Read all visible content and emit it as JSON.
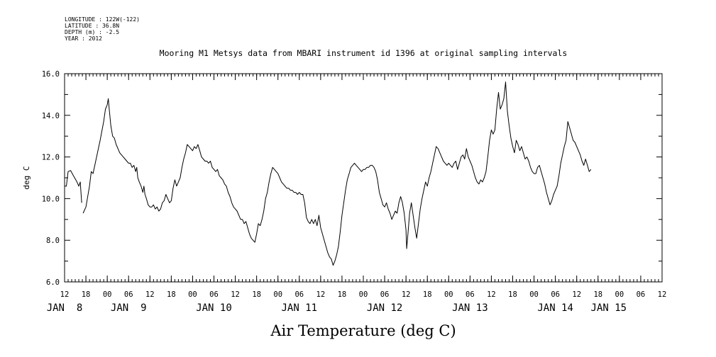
{
  "metadata": [
    "LONGITUDE : 122W(-122)",
    "LATITUDE : 36.8N",
    "DEPTH (m) : -2.5",
    "YEAR : 2012"
  ],
  "chart_data": {
    "type": "line",
    "title": "Mooring M1 Metsys data from MBARI instrument id 1396 at original sampling intervals",
    "xlabel": "Air Temperature (deg C)",
    "ylabel": "deg C",
    "ylim": [
      6.0,
      16.0
    ],
    "y_ticks": [
      "6.0",
      "8.0",
      "10.0",
      "12.0",
      "14.0",
      "16.0"
    ],
    "x_unit": "hours since Jan 7 00:00, 2012",
    "xlim": [
      12,
      180
    ],
    "hour_ticks": [
      {
        "x": 12,
        "label": "12"
      },
      {
        "x": 18,
        "label": "18"
      },
      {
        "x": 24,
        "label": "00"
      },
      {
        "x": 30,
        "label": "06"
      },
      {
        "x": 36,
        "label": "12"
      },
      {
        "x": 42,
        "label": "18"
      },
      {
        "x": 48,
        "label": "00"
      },
      {
        "x": 54,
        "label": "06"
      },
      {
        "x": 60,
        "label": "12"
      },
      {
        "x": 66,
        "label": "18"
      },
      {
        "x": 72,
        "label": "00"
      },
      {
        "x": 78,
        "label": "06"
      },
      {
        "x": 84,
        "label": "12"
      },
      {
        "x": 90,
        "label": "18"
      },
      {
        "x": 96,
        "label": "00"
      },
      {
        "x": 102,
        "label": "06"
      },
      {
        "x": 108,
        "label": "12"
      },
      {
        "x": 114,
        "label": "18"
      },
      {
        "x": 120,
        "label": "00"
      },
      {
        "x": 126,
        "label": "06"
      },
      {
        "x": 132,
        "label": "12"
      },
      {
        "x": 138,
        "label": "18"
      },
      {
        "x": 144,
        "label": "00"
      },
      {
        "x": 150,
        "label": "06"
      },
      {
        "x": 156,
        "label": "12"
      },
      {
        "x": 162,
        "label": "18"
      },
      {
        "x": 168,
        "label": "00"
      },
      {
        "x": 174,
        "label": "06"
      },
      {
        "x": 180,
        "label": "12"
      }
    ],
    "day_labels": [
      {
        "x": 12,
        "label": "JAN  8"
      },
      {
        "x": 30,
        "label": "JAN  9"
      },
      {
        "x": 54,
        "label": "JAN 10"
      },
      {
        "x": 78,
        "label": "JAN 11"
      },
      {
        "x": 102,
        "label": "JAN 12"
      },
      {
        "x": 126,
        "label": "JAN 13"
      },
      {
        "x": 150,
        "label": "JAN 14"
      },
      {
        "x": 165,
        "label": "JAN 15"
      }
    ],
    "segments": [
      [
        [
          12.0,
          10.6
        ],
        [
          12.5,
          10.6
        ],
        [
          13.0,
          11.3
        ],
        [
          13.7,
          11.35
        ],
        [
          14.5,
          11.1
        ],
        [
          15.5,
          10.8
        ],
        [
          16.0,
          10.6
        ],
        [
          16.4,
          10.8
        ],
        [
          16.8,
          9.8
        ]
      ],
      [
        [
          17.2,
          9.3
        ],
        [
          18.0,
          9.6
        ],
        [
          19.0,
          10.6
        ],
        [
          19.5,
          11.3
        ],
        [
          20.0,
          11.2
        ],
        [
          21.0,
          12.0
        ],
        [
          22.0,
          12.8
        ],
        [
          23.0,
          13.7
        ],
        [
          23.5,
          14.3
        ],
        [
          24.0,
          14.5
        ],
        [
          24.3,
          14.8
        ],
        [
          24.6,
          14.2
        ],
        [
          25.0,
          13.5
        ],
        [
          25.5,
          13.0
        ],
        [
          26.0,
          12.9
        ],
        [
          26.5,
          12.6
        ],
        [
          27.0,
          12.4
        ],
        [
          27.5,
          12.2
        ],
        [
          28.0,
          12.1
        ],
        [
          28.5,
          12.0
        ],
        [
          29.0,
          11.9
        ],
        [
          29.5,
          11.8
        ],
        [
          30.0,
          11.7
        ],
        [
          30.5,
          11.7
        ],
        [
          31.0,
          11.5
        ],
        [
          31.5,
          11.6
        ],
        [
          32.0,
          11.3
        ],
        [
          32.3,
          11.5
        ],
        [
          32.6,
          11.0
        ],
        [
          33.0,
          10.8
        ],
        [
          33.5,
          10.6
        ],
        [
          34.0,
          10.3
        ],
        [
          34.3,
          10.6
        ],
        [
          34.6,
          10.2
        ],
        [
          35.0,
          10.0
        ],
        [
          35.5,
          9.7
        ],
        [
          36.0,
          9.6
        ],
        [
          36.5,
          9.6
        ],
        [
          37.0,
          9.7
        ],
        [
          37.5,
          9.5
        ],
        [
          38.0,
          9.6
        ],
        [
          38.5,
          9.4
        ],
        [
          39.0,
          9.5
        ],
        [
          39.5,
          9.8
        ],
        [
          40.0,
          9.9
        ],
        [
          40.5,
          10.2
        ],
        [
          41.0,
          10.0
        ],
        [
          41.5,
          9.8
        ],
        [
          42.0,
          9.9
        ],
        [
          42.5,
          10.5
        ],
        [
          43.0,
          10.9
        ],
        [
          43.5,
          10.6
        ],
        [
          44.0,
          10.8
        ],
        [
          44.5,
          11.0
        ],
        [
          45.0,
          11.5
        ],
        [
          45.5,
          11.9
        ],
        [
          46.0,
          12.2
        ],
        [
          46.5,
          12.6
        ],
        [
          47.0,
          12.5
        ],
        [
          47.5,
          12.4
        ],
        [
          48.0,
          12.3
        ],
        [
          48.5,
          12.5
        ],
        [
          49.0,
          12.4
        ],
        [
          49.5,
          12.6
        ],
        [
          50.0,
          12.3
        ],
        [
          50.5,
          12.0
        ],
        [
          51.0,
          11.9
        ],
        [
          51.5,
          11.8
        ],
        [
          52.0,
          11.8
        ],
        [
          52.5,
          11.7
        ],
        [
          53.0,
          11.8
        ],
        [
          53.5,
          11.5
        ],
        [
          54.0,
          11.4
        ],
        [
          54.5,
          11.3
        ],
        [
          55.0,
          11.4
        ],
        [
          55.5,
          11.1
        ],
        [
          56.0,
          11.0
        ],
        [
          56.5,
          10.9
        ],
        [
          57.0,
          10.7
        ],
        [
          57.5,
          10.6
        ],
        [
          58.0,
          10.3
        ],
        [
          58.5,
          10.1
        ],
        [
          59.0,
          9.8
        ],
        [
          59.5,
          9.6
        ],
        [
          60.0,
          9.5
        ],
        [
          60.5,
          9.4
        ],
        [
          61.0,
          9.2
        ],
        [
          61.5,
          9.0
        ],
        [
          62.0,
          9.0
        ],
        [
          62.5,
          8.8
        ],
        [
          63.0,
          8.9
        ],
        [
          63.5,
          8.6
        ],
        [
          64.0,
          8.3
        ],
        [
          64.5,
          8.1
        ],
        [
          65.0,
          8.0
        ],
        [
          65.5,
          7.9
        ],
        [
          66.0,
          8.3
        ],
        [
          66.5,
          8.8
        ],
        [
          67.0,
          8.7
        ],
        [
          67.5,
          9.0
        ],
        [
          68.0,
          9.4
        ],
        [
          68.5,
          10.0
        ],
        [
          69.0,
          10.3
        ],
        [
          69.5,
          10.8
        ],
        [
          70.0,
          11.2
        ],
        [
          70.5,
          11.5
        ],
        [
          71.0,
          11.4
        ],
        [
          71.5,
          11.3
        ],
        [
          72.0,
          11.2
        ],
        [
          72.5,
          11.0
        ],
        [
          73.0,
          10.8
        ],
        [
          73.5,
          10.7
        ],
        [
          74.0,
          10.6
        ],
        [
          74.5,
          10.5
        ],
        [
          75.0,
          10.5
        ],
        [
          75.5,
          10.4
        ],
        [
          76.0,
          10.4
        ],
        [
          76.5,
          10.3
        ],
        [
          77.0,
          10.3
        ],
        [
          77.5,
          10.2
        ],
        [
          78.0,
          10.3
        ],
        [
          78.5,
          10.2
        ],
        [
          79.0,
          10.2
        ],
        [
          79.5,
          9.8
        ],
        [
          80.0,
          9.1
        ],
        [
          80.5,
          8.9
        ],
        [
          81.0,
          8.8
        ],
        [
          81.5,
          9.0
        ],
        [
          82.0,
          8.8
        ],
        [
          82.5,
          9.0
        ],
        [
          83.0,
          8.7
        ],
        [
          83.5,
          9.2
        ],
        [
          84.0,
          8.6
        ],
        [
          84.5,
          8.3
        ],
        [
          85.0,
          8.0
        ],
        [
          85.5,
          7.7
        ],
        [
          86.0,
          7.4
        ],
        [
          86.5,
          7.2
        ],
        [
          87.0,
          7.1
        ],
        [
          87.5,
          6.8
        ],
        [
          88.0,
          7.0
        ],
        [
          88.5,
          7.3
        ],
        [
          89.0,
          7.7
        ],
        [
          89.5,
          8.4
        ],
        [
          90.0,
          9.2
        ],
        [
          90.5,
          9.8
        ],
        [
          91.0,
          10.4
        ],
        [
          91.5,
          10.9
        ],
        [
          92.0,
          11.2
        ],
        [
          92.5,
          11.5
        ],
        [
          93.0,
          11.6
        ],
        [
          93.5,
          11.7
        ],
        [
          94.0,
          11.6
        ],
        [
          94.5,
          11.5
        ],
        [
          95.0,
          11.4
        ],
        [
          95.5,
          11.3
        ],
        [
          96.0,
          11.4
        ],
        [
          96.5,
          11.4
        ],
        [
          97.0,
          11.5
        ],
        [
          97.5,
          11.5
        ],
        [
          98.0,
          11.6
        ],
        [
          98.5,
          11.6
        ],
        [
          99.0,
          11.5
        ],
        [
          99.5,
          11.3
        ],
        [
          100.0,
          10.9
        ],
        [
          100.5,
          10.3
        ],
        [
          101.0,
          10.0
        ],
        [
          101.5,
          9.7
        ],
        [
          102.0,
          9.6
        ],
        [
          102.5,
          9.8
        ],
        [
          103.0,
          9.5
        ],
        [
          103.5,
          9.3
        ],
        [
          104.0,
          9.0
        ],
        [
          104.5,
          9.2
        ],
        [
          105.0,
          9.4
        ],
        [
          105.5,
          9.3
        ],
        [
          106.0,
          9.8
        ],
        [
          106.5,
          10.1
        ],
        [
          107.0,
          9.8
        ],
        [
          107.5,
          9.3
        ],
        [
          108.0,
          8.5
        ],
        [
          108.2,
          7.6
        ],
        [
          108.6,
          8.4
        ],
        [
          109.0,
          9.3
        ],
        [
          109.5,
          9.8
        ],
        [
          110.0,
          9.2
        ],
        [
          110.5,
          8.6
        ],
        [
          111.0,
          8.1
        ],
        [
          111.5,
          8.8
        ],
        [
          112.0,
          9.5
        ],
        [
          112.5,
          10.0
        ],
        [
          113.0,
          10.4
        ],
        [
          113.5,
          10.8
        ],
        [
          114.0,
          10.6
        ],
        [
          114.5,
          11.0
        ],
        [
          115.0,
          11.3
        ],
        [
          115.5,
          11.7
        ],
        [
          116.0,
          12.1
        ],
        [
          116.5,
          12.5
        ],
        [
          117.0,
          12.4
        ],
        [
          117.5,
          12.2
        ],
        [
          118.0,
          12.0
        ],
        [
          118.5,
          11.8
        ],
        [
          119.0,
          11.7
        ],
        [
          119.5,
          11.6
        ],
        [
          120.0,
          11.7
        ],
        [
          120.5,
          11.6
        ],
        [
          121.0,
          11.5
        ],
        [
          121.5,
          11.7
        ],
        [
          122.0,
          11.8
        ],
        [
          122.5,
          11.4
        ],
        [
          123.0,
          11.7
        ],
        [
          123.5,
          12.0
        ],
        [
          124.0,
          12.1
        ],
        [
          124.5,
          11.9
        ],
        [
          125.0,
          12.4
        ],
        [
          125.5,
          12.0
        ],
        [
          126.0,
          11.8
        ],
        [
          126.5,
          11.6
        ],
        [
          127.0,
          11.3
        ],
        [
          127.5,
          11.0
        ],
        [
          128.0,
          10.8
        ],
        [
          128.5,
          10.7
        ],
        [
          129.0,
          10.9
        ],
        [
          129.5,
          10.8
        ],
        [
          130.0,
          11.0
        ],
        [
          130.5,
          11.3
        ],
        [
          131.0,
          12.0
        ],
        [
          131.5,
          12.8
        ],
        [
          132.0,
          13.3
        ],
        [
          132.5,
          13.1
        ],
        [
          133.0,
          13.3
        ],
        [
          133.5,
          14.3
        ],
        [
          134.0,
          15.1
        ],
        [
          134.5,
          14.3
        ],
        [
          135.0,
          14.5
        ],
        [
          135.5,
          14.8
        ],
        [
          136.0,
          15.6
        ],
        [
          136.5,
          14.2
        ],
        [
          137.0,
          13.5
        ],
        [
          137.5,
          12.9
        ],
        [
          138.0,
          12.5
        ],
        [
          138.5,
          12.2
        ],
        [
          139.0,
          12.8
        ],
        [
          139.5,
          12.6
        ],
        [
          140.0,
          12.3
        ],
        [
          140.5,
          12.5
        ],
        [
          141.0,
          12.2
        ],
        [
          141.5,
          11.9
        ],
        [
          142.0,
          12.0
        ],
        [
          142.5,
          11.8
        ],
        [
          143.0,
          11.5
        ],
        [
          143.5,
          11.3
        ],
        [
          144.0,
          11.2
        ],
        [
          144.5,
          11.2
        ],
        [
          145.0,
          11.5
        ],
        [
          145.5,
          11.6
        ],
        [
          146.0,
          11.3
        ],
        [
          146.5,
          11.0
        ],
        [
          147.0,
          10.7
        ],
        [
          147.5,
          10.3
        ],
        [
          148.0,
          10.0
        ],
        [
          148.5,
          9.7
        ],
        [
          149.0,
          9.9
        ],
        [
          149.5,
          10.2
        ],
        [
          150.0,
          10.4
        ],
        [
          150.5,
          10.6
        ],
        [
          151.0,
          11.1
        ],
        [
          151.5,
          11.7
        ],
        [
          152.0,
          12.1
        ],
        [
          152.5,
          12.5
        ],
        [
          153.0,
          12.8
        ],
        [
          153.5,
          13.7
        ],
        [
          154.0,
          13.4
        ],
        [
          154.5,
          13.1
        ],
        [
          155.0,
          12.8
        ],
        [
          155.5,
          12.7
        ],
        [
          156.0,
          12.5
        ],
        [
          156.5,
          12.3
        ],
        [
          157.0,
          12.1
        ],
        [
          157.5,
          11.8
        ],
        [
          158.0,
          11.6
        ],
        [
          158.5,
          11.9
        ],
        [
          159.0,
          11.6
        ],
        [
          159.5,
          11.3
        ],
        [
          160.0,
          11.4
        ]
      ]
    ]
  }
}
